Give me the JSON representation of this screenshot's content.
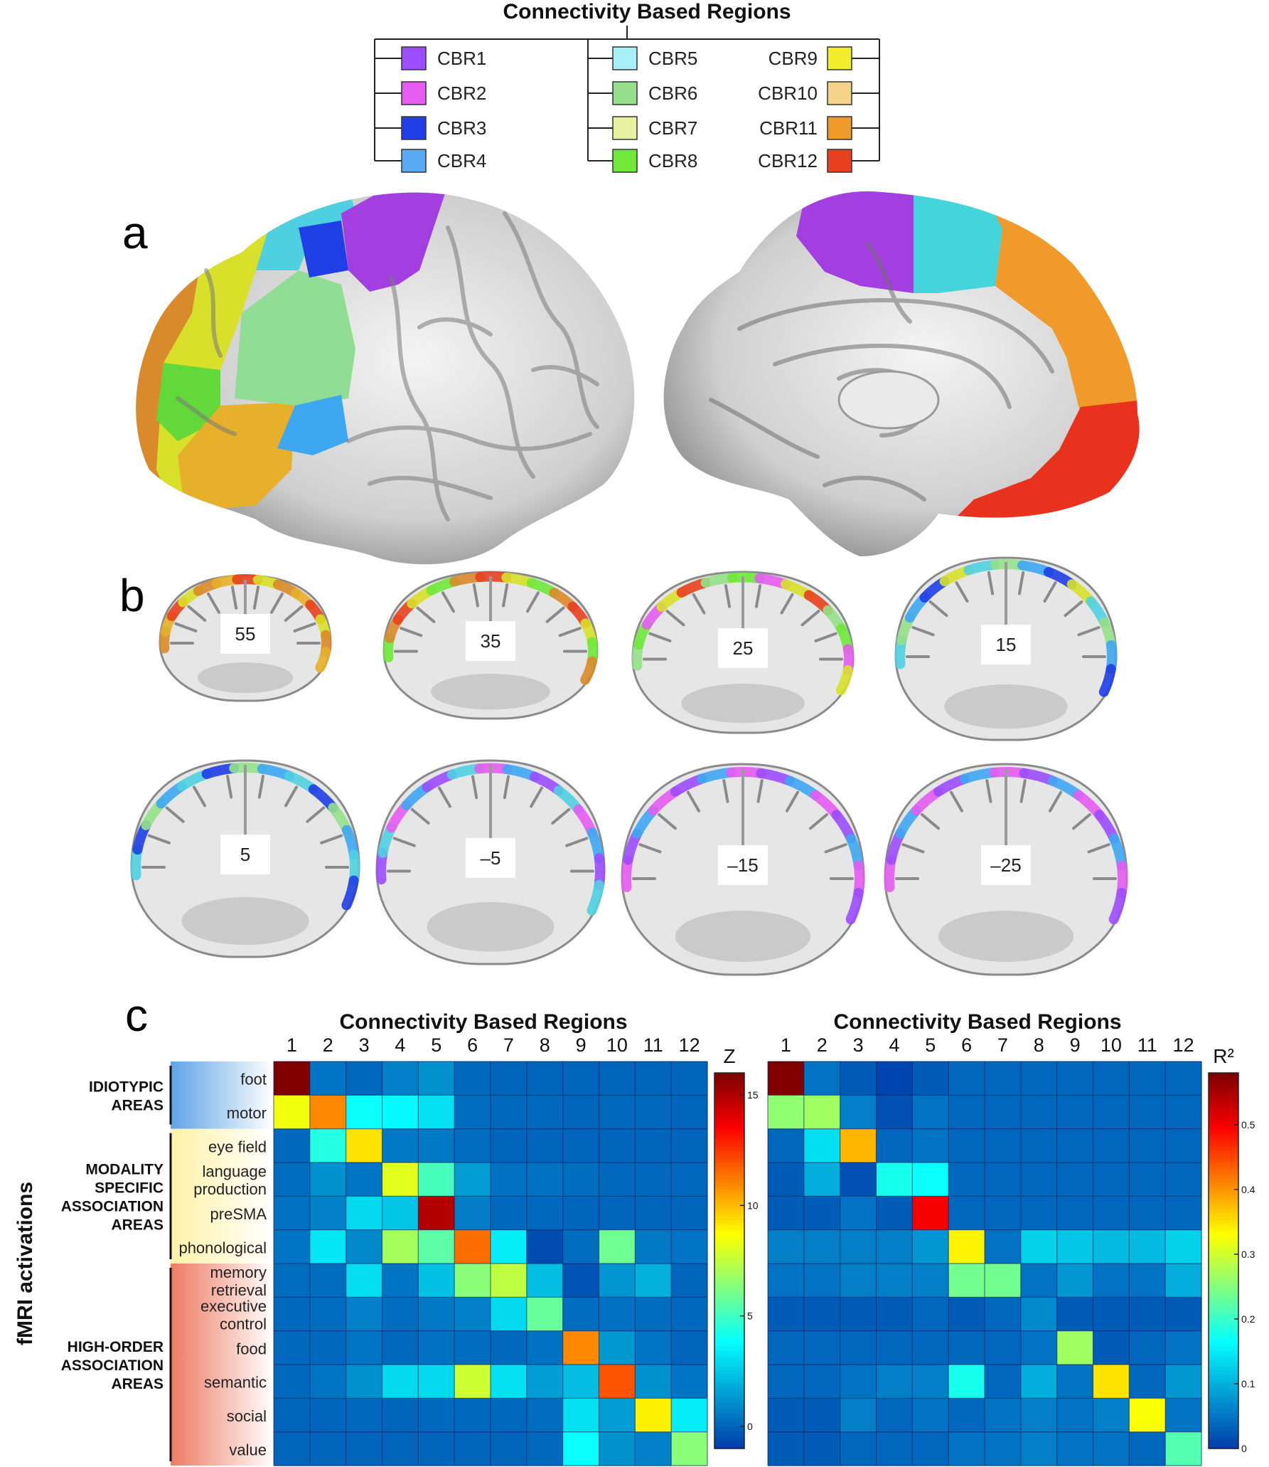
{
  "legend": {
    "title": "Connectivity Based Regions",
    "items": [
      {
        "label": "CBR1",
        "color": "#9b4dff"
      },
      {
        "label": "CBR2",
        "color": "#e45cf0"
      },
      {
        "label": "CBR3",
        "color": "#1f3ee6"
      },
      {
        "label": "CBR4",
        "color": "#58aaf2"
      },
      {
        "label": "CBR5",
        "color": "#a8f0f8"
      },
      {
        "label": "CBR6",
        "color": "#95e08a"
      },
      {
        "label": "CBR7",
        "color": "#e6f2a0"
      },
      {
        "label": "CBR8",
        "color": "#6fe83a"
      },
      {
        "label": "CBR9",
        "color": "#f2ec2a"
      },
      {
        "label": "CBR10",
        "color": "#f5d28a"
      },
      {
        "label": "CBR11",
        "color": "#ef9a2a"
      },
      {
        "label": "CBR12",
        "color": "#e8401e"
      }
    ]
  },
  "panels": {
    "a": "a",
    "b": "b",
    "c": "c"
  },
  "slices": [
    "55",
    "35",
    "25",
    "15",
    "5",
    "–5",
    "–15",
    "–25"
  ],
  "matrices": {
    "axis_title": "Connectivity Based Regions",
    "y_axis_title": "fMRI activations",
    "columns": [
      "1",
      "2",
      "3",
      "4",
      "5",
      "6",
      "7",
      "8",
      "9",
      "10",
      "11",
      "12"
    ],
    "groups": [
      {
        "label_lines": [
          "IDIOTYPIC",
          "AREAS"
        ]
      },
      {
        "label_lines": [
          "MODALITY",
          "SPECIFIC",
          "ASSOCIATION",
          "AREAS"
        ]
      },
      {
        "label_lines": [
          "HIGH-ORDER",
          "ASSOCIATION",
          "AREAS"
        ]
      }
    ],
    "rows": [
      {
        "label_lines": [
          "foot"
        ]
      },
      {
        "label_lines": [
          "motor"
        ]
      },
      {
        "label_lines": [
          "eye field"
        ]
      },
      {
        "label_lines": [
          "language",
          "production"
        ]
      },
      {
        "label_lines": [
          "preSMA"
        ]
      },
      {
        "label_lines": [
          "phonological"
        ]
      },
      {
        "label_lines": [
          "memory",
          "retrieval"
        ]
      },
      {
        "label_lines": [
          "executive",
          "control"
        ]
      },
      {
        "label_lines": [
          "food"
        ]
      },
      {
        "label_lines": [
          "semantic"
        ]
      },
      {
        "label_lines": [
          "social"
        ]
      },
      {
        "label_lines": [
          "value"
        ]
      }
    ],
    "left_colorbar": {
      "title": "Z",
      "ticks": [
        "15",
        "10",
        "5",
        "0"
      ]
    },
    "right_colorbar": {
      "title": "R²",
      "ticks": [
        "0.5",
        "0.4",
        "0.3",
        "0.2",
        "0.1",
        "0"
      ]
    }
  },
  "chart_data": [
    {
      "type": "heatmap",
      "title": "Connectivity Based Regions",
      "x": [
        "1",
        "2",
        "3",
        "4",
        "5",
        "6",
        "7",
        "8",
        "9",
        "10",
        "11",
        "12"
      ],
      "y": [
        "foot",
        "motor",
        "eye field",
        "language production",
        "preSMA",
        "phonological",
        "memory retrieval",
        "executive control",
        "food",
        "semantic",
        "social",
        "value"
      ],
      "colorbar": "Z",
      "zlim": [
        -1,
        16
      ],
      "values": [
        [
          16,
          0.5,
          0.2,
          0.8,
          1.2,
          0.2,
          0.1,
          0.1,
          0.1,
          0.1,
          0.1,
          0.1
        ],
        [
          8.5,
          11,
          4,
          3.8,
          3.2,
          0.3,
          0.2,
          0.2,
          0.1,
          0.2,
          0.2,
          0.1
        ],
        [
          0.2,
          4.5,
          9.3,
          0.6,
          0.6,
          0.3,
          0.1,
          0.1,
          0.1,
          0.1,
          0.1,
          0.1
        ],
        [
          0.3,
          1.2,
          0.5,
          8.2,
          5.2,
          1.5,
          0.4,
          0.4,
          0.3,
          0.2,
          0.2,
          0.2
        ],
        [
          0.4,
          0.8,
          3,
          2.5,
          15,
          0.7,
          0.2,
          0.2,
          0.1,
          0.1,
          0.1,
          0.1
        ],
        [
          0.5,
          3.3,
          1,
          7,
          5.6,
          11.5,
          3.5,
          -0.5,
          0.3,
          6,
          0.6,
          0.5
        ],
        [
          0.3,
          0.3,
          3.1,
          0.5,
          2.4,
          6.5,
          7.5,
          2.3,
          -0.3,
          1.3,
          2,
          0.1
        ],
        [
          0.2,
          0.3,
          0.8,
          0.3,
          0.6,
          0.8,
          3,
          5.8,
          0.3,
          0.4,
          0.3,
          0.2
        ],
        [
          0.2,
          0.2,
          0.5,
          0.2,
          0.4,
          0.3,
          0.2,
          0.4,
          11,
          1.4,
          0.5,
          0.1
        ],
        [
          0.2,
          0.5,
          1.2,
          3,
          3,
          7.8,
          3.2,
          1.5,
          2.3,
          12,
          1.2,
          0.5
        ],
        [
          0.1,
          0.1,
          0.2,
          0.1,
          0.2,
          0.2,
          0.2,
          0.3,
          3.2,
          1.5,
          9,
          3.5
        ],
        [
          0.1,
          0.1,
          0.1,
          0.1,
          0.1,
          0.1,
          0.1,
          0.2,
          4,
          1.2,
          0.8,
          6.5
        ]
      ]
    },
    {
      "type": "heatmap",
      "title": "Connectivity Based Regions",
      "x": [
        "1",
        "2",
        "3",
        "4",
        "5",
        "6",
        "7",
        "8",
        "9",
        "10",
        "11",
        "12"
      ],
      "y": [
        "foot",
        "motor",
        "eye field",
        "language production",
        "preSMA",
        "phonological",
        "memory retrieval",
        "executive control",
        "food",
        "semantic",
        "social",
        "value"
      ],
      "colorbar": "R²",
      "zlim": [
        0,
        0.58
      ],
      "values": [
        [
          0.58,
          0.05,
          0.03,
          0.01,
          0.03,
          0.04,
          0.04,
          0.04,
          0.04,
          0.04,
          0.04,
          0.04
        ],
        [
          0.26,
          0.27,
          0.06,
          0.02,
          0.05,
          0.04,
          0.04,
          0.04,
          0.04,
          0.04,
          0.04,
          0.04
        ],
        [
          0.04,
          0.14,
          0.38,
          0.04,
          0.05,
          0.04,
          0.04,
          0.04,
          0.04,
          0.04,
          0.04,
          0.04
        ],
        [
          0.03,
          0.1,
          0.02,
          0.18,
          0.17,
          0.04,
          0.04,
          0.04,
          0.04,
          0.04,
          0.04,
          0.04
        ],
        [
          0.03,
          0.03,
          0.05,
          0.03,
          0.5,
          0.04,
          0.04,
          0.04,
          0.04,
          0.04,
          0.04,
          0.04
        ],
        [
          0.06,
          0.06,
          0.06,
          0.06,
          0.08,
          0.34,
          0.05,
          0.13,
          0.12,
          0.11,
          0.11,
          0.13
        ],
        [
          0.05,
          0.05,
          0.06,
          0.06,
          0.06,
          0.24,
          0.24,
          0.05,
          0.08,
          0.05,
          0.05,
          0.1
        ],
        [
          0.03,
          0.03,
          0.03,
          0.03,
          0.04,
          0.03,
          0.04,
          0.07,
          0.03,
          0.03,
          0.03,
          0.03
        ],
        [
          0.04,
          0.04,
          0.04,
          0.04,
          0.04,
          0.04,
          0.04,
          0.05,
          0.27,
          0.03,
          0.04,
          0.05
        ],
        [
          0.04,
          0.04,
          0.05,
          0.06,
          0.06,
          0.18,
          0.04,
          0.1,
          0.05,
          0.35,
          0.04,
          0.08
        ],
        [
          0.03,
          0.03,
          0.06,
          0.04,
          0.05,
          0.04,
          0.05,
          0.06,
          0.05,
          0.06,
          0.33,
          0.05
        ],
        [
          0.03,
          0.03,
          0.04,
          0.04,
          0.04,
          0.05,
          0.05,
          0.06,
          0.05,
          0.05,
          0.04,
          0.22
        ]
      ]
    }
  ]
}
